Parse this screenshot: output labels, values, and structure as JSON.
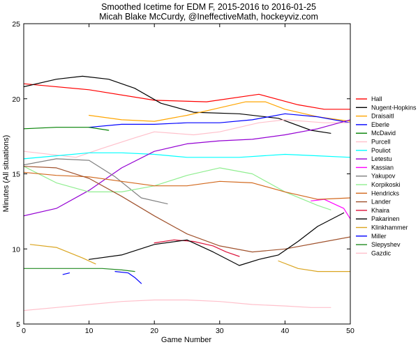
{
  "chart_data": {
    "type": "line",
    "title": "Smoothed Icetime for EDM F, 2015-2016 to 2016-01-25",
    "subtitle": "Micah Blake McCurdy, @IneffectiveMath, hockeyviz.com",
    "xlabel": "Game Number",
    "ylabel": "Minutes (All situations)",
    "xlim": [
      0,
      50
    ],
    "ylim": [
      5,
      25
    ],
    "xticks": [
      0,
      10,
      20,
      30,
      40,
      50
    ],
    "yticks": [
      5,
      10,
      15,
      20,
      25
    ],
    "grid": false,
    "legend_position": "right",
    "series": [
      {
        "name": "Hall",
        "color": "#ff0000",
        "x": [
          0,
          10,
          20,
          28,
          36,
          42,
          46,
          50
        ],
        "y": [
          21.0,
          20.6,
          19.9,
          19.8,
          20.3,
          19.6,
          19.3,
          19.3
        ]
      },
      {
        "name": "Nugent-Hopkins",
        "color": "#000000",
        "x": [
          0,
          5,
          9,
          13,
          17,
          21,
          26,
          33,
          39,
          44,
          47
        ],
        "y": [
          20.8,
          21.3,
          21.5,
          21.3,
          20.7,
          19.7,
          19.1,
          19.0,
          18.7,
          17.9,
          17.7
        ]
      },
      {
        "name": "Draisaitl",
        "color": "#ffa500",
        "x": [
          10,
          15,
          20,
          25,
          30,
          34,
          37,
          40,
          45,
          50
        ],
        "y": [
          18.9,
          18.6,
          18.5,
          18.9,
          19.4,
          19.8,
          19.8,
          19.3,
          18.8,
          18.5
        ]
      },
      {
        "name": "Eberle",
        "color": "#0000ff",
        "x": [
          10,
          15,
          20,
          25,
          30,
          35,
          40,
          45,
          50
        ],
        "y": [
          18.1,
          18.3,
          18.3,
          18.4,
          18.4,
          18.6,
          19.0,
          18.8,
          18.4
        ]
      },
      {
        "name": "McDavid",
        "color": "#008000",
        "x": [
          0,
          5,
          10,
          13
        ],
        "y": [
          18.0,
          18.1,
          18.1,
          17.9
        ]
      },
      {
        "name": "Purcell",
        "color": "#ffc0cb",
        "x": [
          0,
          8,
          12,
          17,
          20,
          26,
          30,
          36,
          40,
          46,
          50
        ],
        "y": [
          16.5,
          16.1,
          16.7,
          17.4,
          17.8,
          17.6,
          17.8,
          18.4,
          18.6,
          18.4,
          18.4
        ]
      },
      {
        "name": "Pouliot",
        "color": "#00ffff",
        "x": [
          0,
          5,
          10,
          15,
          20,
          25,
          33,
          40,
          45,
          50
        ],
        "y": [
          16.0,
          16.2,
          16.4,
          16.4,
          16.3,
          16.1,
          16.1,
          16.3,
          16.2,
          16.1
        ]
      },
      {
        "name": "Letestu",
        "color": "#9400d3",
        "x": [
          0,
          5,
          10,
          15,
          20,
          25,
          30,
          35,
          40,
          45,
          50
        ],
        "y": [
          12.2,
          12.7,
          13.9,
          15.4,
          16.5,
          17.0,
          17.2,
          17.3,
          17.6,
          18.0,
          18.6
        ]
      },
      {
        "name": "Kassian",
        "color": "#ff00ff",
        "x": [
          44,
          46,
          48,
          49,
          50
        ],
        "y": [
          13.2,
          13.3,
          12.9,
          12.7,
          12.0
        ]
      },
      {
        "name": "Yakupov",
        "color": "#808080",
        "x": [
          0,
          5,
          10,
          14,
          18,
          22
        ],
        "y": [
          15.6,
          16.0,
          15.9,
          14.8,
          13.4,
          13.0
        ]
      },
      {
        "name": "Korpikoski",
        "color": "#90ee90",
        "x": [
          0,
          5,
          10,
          15,
          20,
          25,
          30,
          35,
          40,
          45,
          47
        ],
        "y": [
          15.5,
          14.4,
          13.8,
          13.8,
          14.2,
          14.9,
          15.4,
          15.0,
          13.8,
          12.9,
          12.6
        ]
      },
      {
        "name": "Hendricks",
        "color": "#d2691e",
        "x": [
          0,
          5,
          10,
          15,
          20,
          25,
          30,
          35,
          40,
          45,
          50
        ],
        "y": [
          15.1,
          14.9,
          14.8,
          14.5,
          14.2,
          14.2,
          14.5,
          14.4,
          13.8,
          13.3,
          13.4
        ]
      },
      {
        "name": "Lander",
        "color": "#a0522d",
        "x": [
          0,
          5,
          10,
          15,
          20,
          25,
          30,
          35,
          40,
          45,
          50
        ],
        "y": [
          15.5,
          15.4,
          14.7,
          13.5,
          12.2,
          11.0,
          10.2,
          9.8,
          10.0,
          10.4,
          10.8
        ]
      },
      {
        "name": "Khaira",
        "color": "#dc143c",
        "x": [
          20,
          23,
          26,
          29,
          31,
          33
        ],
        "y": [
          10.4,
          10.6,
          10.5,
          10.2,
          9.8,
          9.5
        ]
      },
      {
        "name": "Pakarinen",
        "color": "#000000",
        "x": [
          10,
          15,
          20,
          25,
          29,
          33,
          36,
          39,
          42,
          45,
          49
        ],
        "y": [
          9.3,
          9.6,
          10.3,
          10.6,
          9.8,
          8.9,
          9.3,
          9.6,
          10.5,
          11.5,
          12.4
        ]
      },
      {
        "name": "Klinkhammer",
        "color": "#daa520",
        "x": [
          1,
          5,
          9,
          11
        ],
        "y": [
          10.3,
          10.1,
          9.4,
          9.0
        ]
      },
      {
        "name": "Klinkhammer",
        "color": "#daa520",
        "x": [
          39,
          42,
          45,
          48,
          50
        ],
        "y": [
          9.2,
          8.7,
          8.5,
          8.5,
          8.5
        ]
      },
      {
        "name": "Miller",
        "color": "#0000ff",
        "x": [
          6,
          7
        ],
        "y": [
          8.3,
          8.4
        ]
      },
      {
        "name": "Miller",
        "color": "#0000ff",
        "x": [
          14,
          16,
          17,
          18
        ],
        "y": [
          8.5,
          8.4,
          8.1,
          7.7
        ]
      },
      {
        "name": "Slepyshev",
        "color": "#228b22",
        "x": [
          0,
          4,
          8,
          12,
          15,
          17
        ],
        "y": [
          8.7,
          8.7,
          8.7,
          8.7,
          8.6,
          8.5
        ]
      },
      {
        "name": "Gazdic",
        "color": "#ffc0cb",
        "x": [
          0,
          5,
          10,
          15,
          20,
          25,
          30,
          35,
          40,
          44,
          47
        ],
        "y": [
          5.9,
          6.1,
          6.3,
          6.5,
          6.6,
          6.6,
          6.5,
          6.3,
          6.2,
          6.1,
          6.1
        ]
      }
    ],
    "legend": [
      {
        "name": "Hall",
        "color": "#ff0000"
      },
      {
        "name": "Nugent-Hopkins",
        "color": "#000000"
      },
      {
        "name": "Draisaitl",
        "color": "#ffa500"
      },
      {
        "name": "Eberle",
        "color": "#0000ff"
      },
      {
        "name": "McDavid",
        "color": "#008000"
      },
      {
        "name": "Purcell",
        "color": "#ffc0cb"
      },
      {
        "name": "Pouliot",
        "color": "#00ffff"
      },
      {
        "name": "Letestu",
        "color": "#9400d3"
      },
      {
        "name": "Kassian",
        "color": "#ff00ff"
      },
      {
        "name": "Yakupov",
        "color": "#808080"
      },
      {
        "name": "Korpikoski",
        "color": "#90ee90"
      },
      {
        "name": "Hendricks",
        "color": "#d2691e"
      },
      {
        "name": "Lander",
        "color": "#a0522d"
      },
      {
        "name": "Khaira",
        "color": "#dc143c"
      },
      {
        "name": "Pakarinen",
        "color": "#000000"
      },
      {
        "name": "Klinkhammer",
        "color": "#daa520"
      },
      {
        "name": "Miller",
        "color": "#0000ff"
      },
      {
        "name": "Slepyshev",
        "color": "#228b22"
      },
      {
        "name": "Gazdic",
        "color": "#ffc0cb"
      }
    ]
  }
}
